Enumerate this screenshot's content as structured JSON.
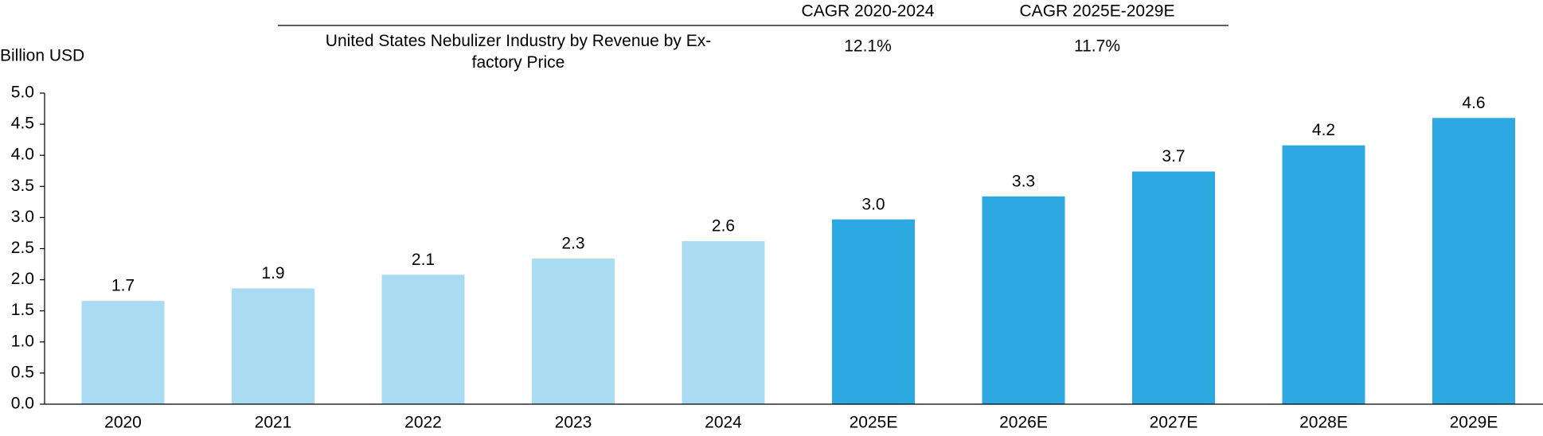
{
  "chart_data": {
    "type": "bar",
    "y_axis_label": "Billion USD",
    "cagr_table": {
      "headers": [
        "CAGR 2020-2024",
        "CAGR 2025E-2029E"
      ],
      "row_label": "United States Nebulizer Industry by Revenue by Ex-factory Price",
      "values": [
        "12.1%",
        "11.7%"
      ]
    },
    "categories": [
      "2020",
      "2021",
      "2022",
      "2023",
      "2024",
      "2025E",
      "2026E",
      "2027E",
      "2028E",
      "2029E"
    ],
    "values": [
      1.66,
      1.86,
      2.08,
      2.34,
      2.62,
      2.97,
      3.34,
      3.74,
      4.16,
      4.6
    ],
    "value_labels": [
      "1.7",
      "1.9",
      "2.1",
      "2.3",
      "2.6",
      "3.0",
      "3.3",
      "3.7",
      "4.2",
      "4.6"
    ],
    "colors": [
      "#a9dbf2",
      "#a9dbf2",
      "#a9dbf2",
      "#a9dbf2",
      "#a9dbf2",
      "#2ea8e0",
      "#2ea8e0",
      "#2ea8e0",
      "#2ea8e0",
      "#2ea8e0"
    ],
    "ylim": [
      0,
      5
    ],
    "yticks": [
      {
        "value": 0,
        "label": "0.0"
      },
      0.5,
      {
        "value": 1,
        "label": "1.0"
      },
      1.5,
      {
        "value": 2,
        "label": "2.0"
      },
      2.5,
      {
        "value": 3,
        "label": "3.0"
      },
      3.5,
      {
        "value": 4,
        "label": "4.0"
      },
      4.5,
      {
        "value": 5,
        "label": "5.0"
      }
    ]
  }
}
